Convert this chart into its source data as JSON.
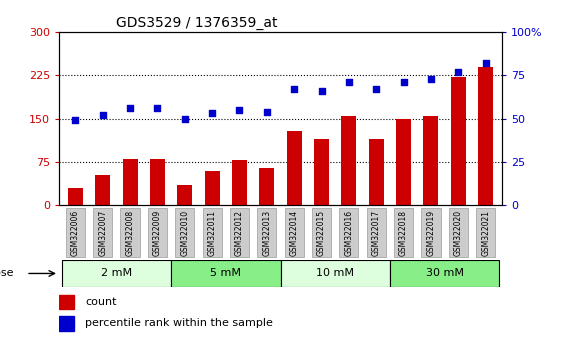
{
  "title": "GDS3529 / 1376359_at",
  "categories": [
    "GSM322006",
    "GSM322007",
    "GSM322008",
    "GSM322009",
    "GSM322010",
    "GSM322011",
    "GSM322012",
    "GSM322013",
    "GSM322014",
    "GSM322015",
    "GSM322016",
    "GSM322017",
    "GSM322018",
    "GSM322019",
    "GSM322020",
    "GSM322021"
  ],
  "bar_values": [
    30,
    52,
    80,
    80,
    35,
    60,
    78,
    65,
    128,
    115,
    155,
    115,
    150,
    155,
    222,
    240
  ],
  "dot_values": [
    49,
    52,
    56,
    56,
    50,
    53,
    55,
    54,
    67,
    66,
    71,
    67,
    71,
    73,
    77,
    82
  ],
  "bar_color": "#cc0000",
  "dot_color": "#0000cc",
  "ylim_left": [
    0,
    300
  ],
  "ylim_right": [
    0,
    100
  ],
  "yticks_left": [
    0,
    75,
    150,
    225,
    300
  ],
  "yticks_right": [
    0,
    25,
    50,
    75,
    100
  ],
  "ytick_labels_left": [
    "0",
    "75",
    "150",
    "225",
    "300"
  ],
  "ytick_labels_right": [
    "0",
    "25",
    "50",
    "75",
    "100%"
  ],
  "dose_groups": [
    {
      "label": "2 mM",
      "start": 0,
      "end": 4,
      "facecolor": "#ddffdd",
      "edgecolor": "#000000"
    },
    {
      "label": "5 mM",
      "start": 4,
      "end": 8,
      "facecolor": "#88ee88",
      "edgecolor": "#000000"
    },
    {
      "label": "10 mM",
      "start": 8,
      "end": 12,
      "facecolor": "#ddffdd",
      "edgecolor": "#000000"
    },
    {
      "label": "30 mM",
      "start": 12,
      "end": 16,
      "facecolor": "#88ee88",
      "edgecolor": "#000000"
    }
  ],
  "legend_count_label": "count",
  "legend_pct_label": "percentile rank within the sample",
  "dose_label": "dose",
  "background_color": "#ffffff",
  "xtick_bg_color": "#cccccc",
  "grid_linestyle": "dotted"
}
